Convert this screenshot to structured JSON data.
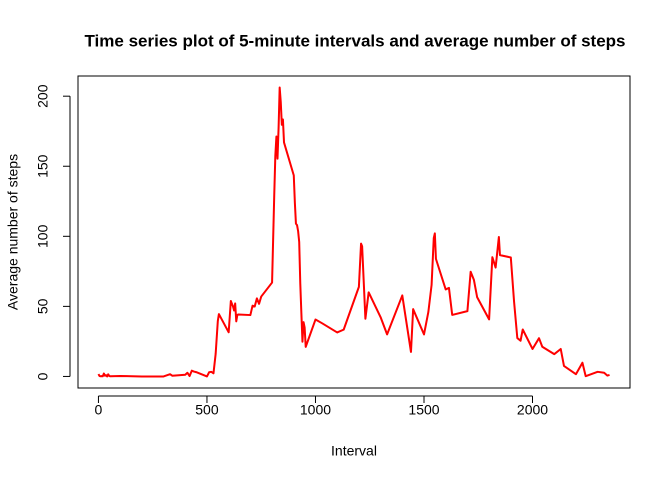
{
  "chart_data": {
    "type": "line",
    "title": "Time series plot of 5-minute intervals and average number of steps",
    "x_label": "Interval",
    "y_label": "Average number of steps",
    "x": [
      0,
      5,
      10,
      15,
      20,
      25,
      30,
      35,
      40,
      45,
      50,
      55,
      100,
      200,
      300,
      330,
      340,
      400,
      410,
      420,
      430,
      440,
      450,
      500,
      510,
      520,
      530,
      540,
      550,
      555,
      600,
      610,
      620,
      625,
      630,
      635,
      640,
      645,
      700,
      710,
      720,
      730,
      740,
      750,
      800,
      810,
      815,
      820,
      825,
      830,
      835,
      840,
      845,
      850,
      855,
      900,
      905,
      910,
      915,
      920,
      925,
      930,
      935,
      940,
      945,
      950,
      955,
      1000,
      1030,
      1100,
      1130,
      1200,
      1210,
      1215,
      1230,
      1245,
      1300,
      1330,
      1400,
      1440,
      1450,
      1500,
      1520,
      1535,
      1545,
      1550,
      1555,
      1600,
      1615,
      1630,
      1700,
      1715,
      1730,
      1745,
      1800,
      1815,
      1830,
      1845,
      1850,
      1900,
      1915,
      1930,
      1945,
      1955,
      2000,
      2030,
      2045,
      2100,
      2130,
      2145,
      2200,
      2230,
      2245,
      2300,
      2330,
      2345,
      2355
    ],
    "series": [
      {
        "name": "steps",
        "color": "#ff0000",
        "values": [
          1.7,
          0.3,
          0.1,
          0.2,
          0.1,
          2.1,
          0.5,
          0.9,
          0,
          1.5,
          0.3,
          0.1,
          0.3,
          0,
          0,
          1.6,
          0.5,
          1.2,
          2.6,
          0.3,
          4.1,
          3.5,
          3.1,
          0,
          3,
          3.3,
          2.2,
          16,
          39.5,
          44.5,
          31.5,
          53.8,
          49.9,
          47.1,
          52.1,
          39.3,
          44,
          44.2,
          43.8,
          50.5,
          49.9,
          55.7,
          51.8,
          57,
          67,
          129.4,
          157.5,
          171.2,
          155.4,
          177.3,
          206.2,
          195.9,
          179.6,
          183.4,
          167,
          143.5,
          124,
          109,
          108,
          103.7,
          96,
          66.2,
          45.2,
          24.8,
          38.8,
          35,
          21.1,
          40.6,
          38,
          31.4,
          33.4,
          63.9,
          94.8,
          92.8,
          41.2,
          60,
          42.3,
          30,
          57.8,
          17.5,
          48,
          30,
          45.9,
          65.3,
          98.7,
          102.1,
          83.9,
          62.1,
          63.2,
          43.9,
          46.6,
          74.7,
          68.9,
          56.5,
          40.7,
          85.1,
          77.7,
          99.5,
          86.6,
          84.9,
          53.4,
          27.4,
          25.5,
          33.5,
          19.6,
          27.3,
          21.2,
          15.9,
          19.6,
          7.5,
          1.6,
          9.8,
          0.2,
          3.3,
          2.6,
          0.6,
          1.1
        ]
      }
    ],
    "xlim": [
      -94.2,
      2449.2
    ],
    "xticks": [
      0,
      500,
      1000,
      1500,
      2000
    ],
    "ylim": [
      -8.25,
      214.4
    ],
    "yticks": [
      0,
      50,
      100,
      150,
      200
    ]
  }
}
